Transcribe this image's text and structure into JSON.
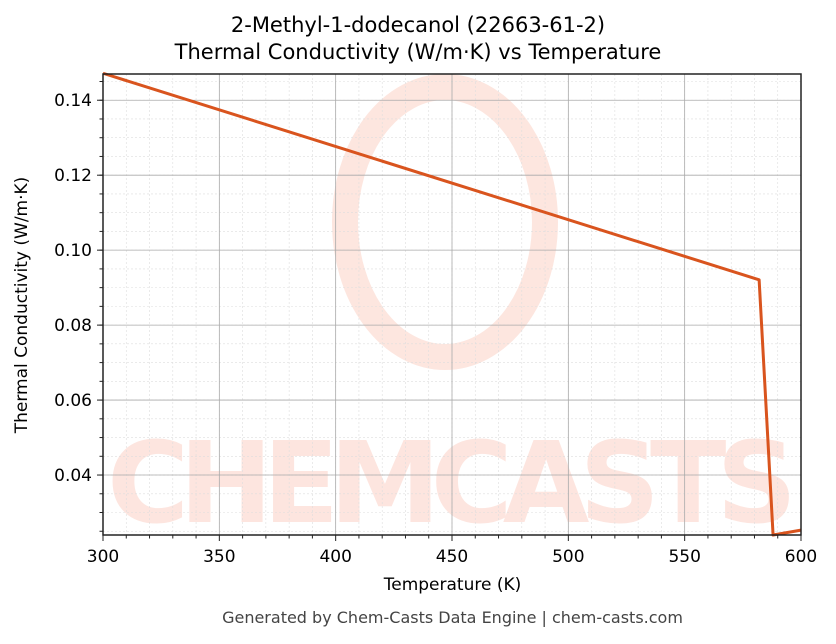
{
  "chart_data": {
    "type": "line",
    "title": "2-Methyl-1-dodecanol (22663-61-2)",
    "subtitle": "Thermal Conductivity (W/m·K) vs Temperature",
    "xlabel": "Temperature (K)",
    "ylabel": "Thermal Conductivity (W/m·K)",
    "xlim": [
      300,
      600
    ],
    "ylim": [
      0.024,
      0.147
    ],
    "xticks": [
      300,
      350,
      400,
      450,
      500,
      550,
      600
    ],
    "yticks": [
      0.04,
      0.06,
      0.08,
      0.1,
      0.12,
      0.14
    ],
    "ytick_labels": [
      "0.04",
      "0.06",
      "0.08",
      "0.10",
      "0.12",
      "0.14"
    ],
    "grid": true,
    "series": [
      {
        "name": "Thermal Conductivity",
        "color": "#d9541e",
        "x": [
          300,
          582,
          588,
          600
        ],
        "y": [
          0.1472,
          0.0921,
          0.024,
          0.0253
        ]
      }
    ],
    "watermark": "CHEMCASTS",
    "footer": "Generated by Chem-Casts Data Engine | chem-casts.com"
  }
}
